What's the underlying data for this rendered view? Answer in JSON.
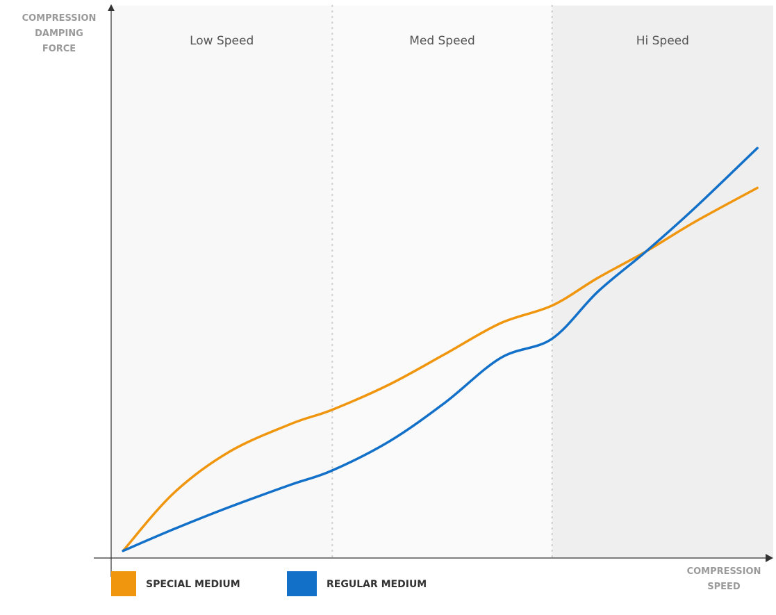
{
  "chart_data": {
    "type": "line",
    "y_label": [
      "COMPRESSION",
      "DAMPING",
      "FORCE"
    ],
    "x_label": [
      "COMPRESSION",
      "SPEED"
    ],
    "xlim": [
      0,
      100
    ],
    "ylim": [
      0,
      100
    ],
    "zones": [
      {
        "label": "Low Speed",
        "start": 0,
        "end": 33.4,
        "color": "#f8f8f8"
      },
      {
        "label": "Med Speed",
        "start": 33.4,
        "end": 66.6,
        "color": "#fafafa"
      },
      {
        "label": "Hi Speed",
        "start": 66.6,
        "end": 100,
        "color": "#efefef"
      }
    ],
    "x": [
      1.8,
      9.4,
      17.8,
      27.2,
      33.3,
      42,
      50.4,
      58.8,
      66.6,
      73.5,
      80.8,
      88.1,
      97.6
    ],
    "series": [
      {
        "name": "SPECIAL MEDIUM",
        "color": "#f0960e",
        "values": [
          1.3,
          11.7,
          19.2,
          24.3,
          26.8,
          31.4,
          36.9,
          42.5,
          45.7,
          50.7,
          55.5,
          60.8,
          67.0
        ]
      },
      {
        "name": "REGULAR MEDIUM",
        "color": "#1270c8",
        "values": [
          1.3,
          5.2,
          9.2,
          13.3,
          15.8,
          21.1,
          28.1,
          36.2,
          39.7,
          48.2,
          55.5,
          63.3,
          74.2
        ]
      }
    ]
  }
}
